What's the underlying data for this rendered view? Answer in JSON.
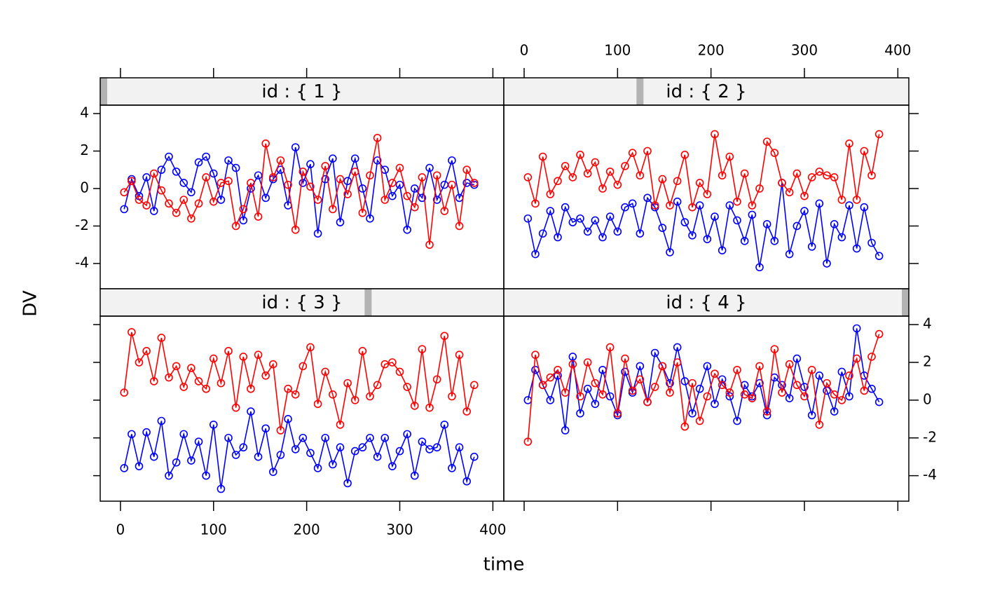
{
  "x_label": "time",
  "y_label": "DV",
  "chart_data": [
    {
      "type": "line",
      "title": "id : { 1 }",
      "x": [
        4,
        12,
        20,
        28,
        36,
        44,
        52,
        60,
        68,
        76,
        84,
        92,
        100,
        108,
        116,
        124,
        132,
        140,
        148,
        156,
        164,
        172,
        180,
        188,
        196,
        204,
        212,
        220,
        228,
        236,
        244,
        252,
        260,
        268,
        276,
        284,
        292,
        300,
        308,
        316,
        324,
        332,
        340,
        348,
        356,
        364,
        372,
        380
      ],
      "series": [
        {
          "color": "#0000ff",
          "values": [
            -1.1,
            0.5,
            -0.4,
            0.6,
            -1.2,
            1.0,
            1.7,
            0.9,
            0.3,
            -0.2,
            1.4,
            1.7,
            0.8,
            -0.6,
            1.5,
            1.1,
            -1.7,
            0.0,
            0.7,
            -0.5,
            0.5,
            1.0,
            -0.9,
            2.2,
            0.3,
            1.3,
            -2.4,
            0.5,
            1.6,
            -1.8,
            0.4,
            1.6,
            0.0,
            -1.6,
            1.5,
            1.0,
            -0.4,
            0.2,
            -2.2,
            0.0,
            -0.5,
            1.1,
            -0.6,
            0.2,
            1.5,
            -0.5,
            0.3,
            0.2
          ]
        },
        {
          "color": "#ff0000",
          "values": [
            -0.2,
            0.4,
            -0.6,
            -0.9,
            0.8,
            -0.1,
            -0.8,
            -1.3,
            -0.6,
            -1.6,
            -0.8,
            0.6,
            -0.7,
            0.3,
            0.4,
            -2.0,
            -1.1,
            0.3,
            -1.5,
            2.4,
            0.6,
            1.5,
            0.2,
            -2.2,
            0.9,
            0.1,
            -0.6,
            1.2,
            -1.1,
            0.5,
            -0.3,
            0.9,
            -1.3,
            0.7,
            2.7,
            -0.6,
            0.3,
            1.1,
            -0.4,
            -1.0,
            0.6,
            -3.0,
            0.7,
            -1.2,
            0.2,
            -2.0,
            1.0,
            0.3
          ]
        }
      ],
      "xlim": [
        -21.75,
        411.75
      ],
      "ylim": [
        -5.35,
        4.45
      ],
      "xticks": [
        0,
        100,
        200,
        300,
        400
      ],
      "yticks": [
        -4,
        -2,
        0,
        2,
        4
      ]
    },
    {
      "type": "line",
      "title": "id : { 2 }",
      "x": [
        4,
        12,
        20,
        28,
        36,
        44,
        52,
        60,
        68,
        76,
        84,
        92,
        100,
        108,
        116,
        124,
        132,
        140,
        148,
        156,
        164,
        172,
        180,
        188,
        196,
        204,
        212,
        220,
        228,
        236,
        244,
        252,
        260,
        268,
        276,
        284,
        292,
        300,
        308,
        316,
        324,
        332,
        340,
        348,
        356,
        364,
        372,
        380
      ],
      "series": [
        {
          "color": "#0000ff",
          "values": [
            -1.6,
            -3.5,
            -2.4,
            -1.2,
            -2.6,
            -1.0,
            -1.8,
            -1.6,
            -2.3,
            -1.7,
            -2.6,
            -1.5,
            -2.3,
            -1.0,
            -0.8,
            -2.4,
            -0.5,
            -1.0,
            -2.1,
            -3.4,
            -0.7,
            -1.8,
            -2.5,
            -0.9,
            -2.7,
            -1.5,
            -3.3,
            -0.9,
            -1.7,
            -2.8,
            -1.4,
            -4.2,
            -1.9,
            -2.8,
            0.3,
            -3.5,
            -2.0,
            -1.2,
            -3.1,
            -0.8,
            -4.0,
            -1.9,
            -2.6,
            -0.9,
            -3.2,
            -1.0,
            -2.9,
            -3.6
          ]
        },
        {
          "color": "#ff0000",
          "values": [
            0.6,
            -0.8,
            1.7,
            -0.3,
            0.4,
            1.2,
            0.6,
            1.8,
            0.8,
            1.4,
            0.0,
            0.9,
            0.2,
            1.2,
            1.9,
            0.7,
            2.0,
            -0.9,
            0.5,
            -0.9,
            0.4,
            1.8,
            -1.0,
            0.3,
            -0.3,
            2.9,
            0.7,
            1.7,
            -0.7,
            0.8,
            -0.9,
            0.0,
            2.5,
            1.9,
            0.3,
            -0.2,
            0.8,
            -0.4,
            0.6,
            0.9,
            0.7,
            0.6,
            -0.6,
            2.4,
            -0.6,
            2.0,
            0.7,
            2.9
          ]
        }
      ],
      "xlim": [
        -21.75,
        411.75
      ],
      "ylim": [
        -5.35,
        4.45
      ],
      "xticks": [
        0,
        100,
        200,
        300,
        400
      ],
      "yticks": [
        -4,
        -2,
        0,
        2,
        4
      ]
    },
    {
      "type": "line",
      "title": "id : { 3 }",
      "x": [
        4,
        12,
        20,
        28,
        36,
        44,
        52,
        60,
        68,
        76,
        84,
        92,
        100,
        108,
        116,
        124,
        132,
        140,
        148,
        156,
        164,
        172,
        180,
        188,
        196,
        204,
        212,
        220,
        228,
        236,
        244,
        252,
        260,
        268,
        276,
        284,
        292,
        300,
        308,
        316,
        324,
        332,
        340,
        348,
        356,
        364,
        372,
        380
      ],
      "series": [
        {
          "color": "#0000ff",
          "values": [
            -3.6,
            -1.8,
            -3.5,
            -1.7,
            -3.0,
            -1.1,
            -4.0,
            -3.3,
            -1.8,
            -3.2,
            -2.2,
            -4.0,
            -1.3,
            -4.7,
            -2.0,
            -2.9,
            -2.5,
            -0.6,
            -3.0,
            -1.5,
            -3.8,
            -2.9,
            -1.0,
            -2.6,
            -2.0,
            -2.8,
            -3.6,
            -2.0,
            -3.4,
            -2.5,
            -4.4,
            -2.7,
            -2.5,
            -2.0,
            -3.0,
            -2.0,
            -3.5,
            -2.7,
            -1.8,
            -4.0,
            -2.2,
            -2.6,
            -2.5,
            -1.3,
            -3.6,
            -2.5,
            -4.3,
            -3.0
          ]
        },
        {
          "color": "#ff0000",
          "values": [
            0.4,
            3.6,
            2.0,
            2.6,
            1.0,
            3.3,
            1.2,
            1.8,
            0.7,
            1.7,
            1.0,
            0.6,
            2.2,
            0.9,
            2.6,
            -0.4,
            2.3,
            0.6,
            2.4,
            1.3,
            1.9,
            -1.6,
            0.6,
            0.3,
            1.8,
            2.8,
            -0.2,
            1.5,
            0.3,
            -1.3,
            0.9,
            0.0,
            2.6,
            0.2,
            0.8,
            1.9,
            2.0,
            1.5,
            0.7,
            -0.3,
            2.7,
            -0.4,
            1.1,
            3.4,
            0.2,
            2.4,
            -0.6,
            0.8
          ]
        }
      ],
      "xlim": [
        -21.75,
        411.75
      ],
      "ylim": [
        -5.35,
        4.45
      ],
      "xticks": [
        0,
        100,
        200,
        300,
        400
      ],
      "yticks": [
        -4,
        -2,
        0,
        2,
        4
      ]
    },
    {
      "type": "line",
      "title": "id : { 4 }",
      "x": [
        4,
        12,
        20,
        28,
        36,
        44,
        52,
        60,
        68,
        76,
        84,
        92,
        100,
        108,
        116,
        124,
        132,
        140,
        148,
        156,
        164,
        172,
        180,
        188,
        196,
        204,
        212,
        220,
        228,
        236,
        244,
        252,
        260,
        268,
        276,
        284,
        292,
        300,
        308,
        316,
        324,
        332,
        340,
        348,
        356,
        364,
        372,
        380
      ],
      "series": [
        {
          "color": "#0000ff",
          "values": [
            0.0,
            1.6,
            0.8,
            0.0,
            1.3,
            -1.6,
            2.3,
            -0.7,
            0.6,
            -0.2,
            1.6,
            0.2,
            -0.8,
            1.5,
            0.4,
            1.8,
            -0.1,
            2.5,
            1.8,
            0.9,
            2.8,
            1.0,
            -0.7,
            0.6,
            1.8,
            -0.2,
            1.1,
            0.2,
            -1.1,
            0.8,
            0.2,
            0.9,
            -0.8,
            1.2,
            0.8,
            0.1,
            2.2,
            0.7,
            -0.8,
            1.3,
            0.5,
            -0.6,
            1.5,
            0.2,
            3.8,
            1.3,
            0.6,
            -0.1
          ]
        },
        {
          "color": "#ff0000",
          "values": [
            -2.2,
            2.4,
            0.8,
            1.2,
            1.6,
            0.4,
            1.9,
            0.2,
            2.0,
            0.9,
            0.3,
            2.8,
            -0.7,
            2.2,
            0.5,
            1.1,
            -0.1,
            0.7,
            1.8,
            0.4,
            2.0,
            -1.4,
            0.9,
            -1.1,
            0.2,
            1.4,
            0.8,
            0.4,
            1.6,
            0.3,
            0.1,
            1.8,
            -0.6,
            2.7,
            0.4,
            1.9,
            0.8,
            0.2,
            1.6,
            -1.3,
            0.9,
            0.3,
            0.0,
            1.3,
            2.2,
            0.5,
            2.3,
            3.5
          ]
        }
      ],
      "xlim": [
        -21.75,
        411.75
      ],
      "ylim": [
        -5.35,
        4.45
      ],
      "xticks": [
        0,
        100,
        200,
        300,
        400
      ],
      "yticks": [
        -4,
        -2,
        0,
        2,
        4
      ]
    }
  ]
}
